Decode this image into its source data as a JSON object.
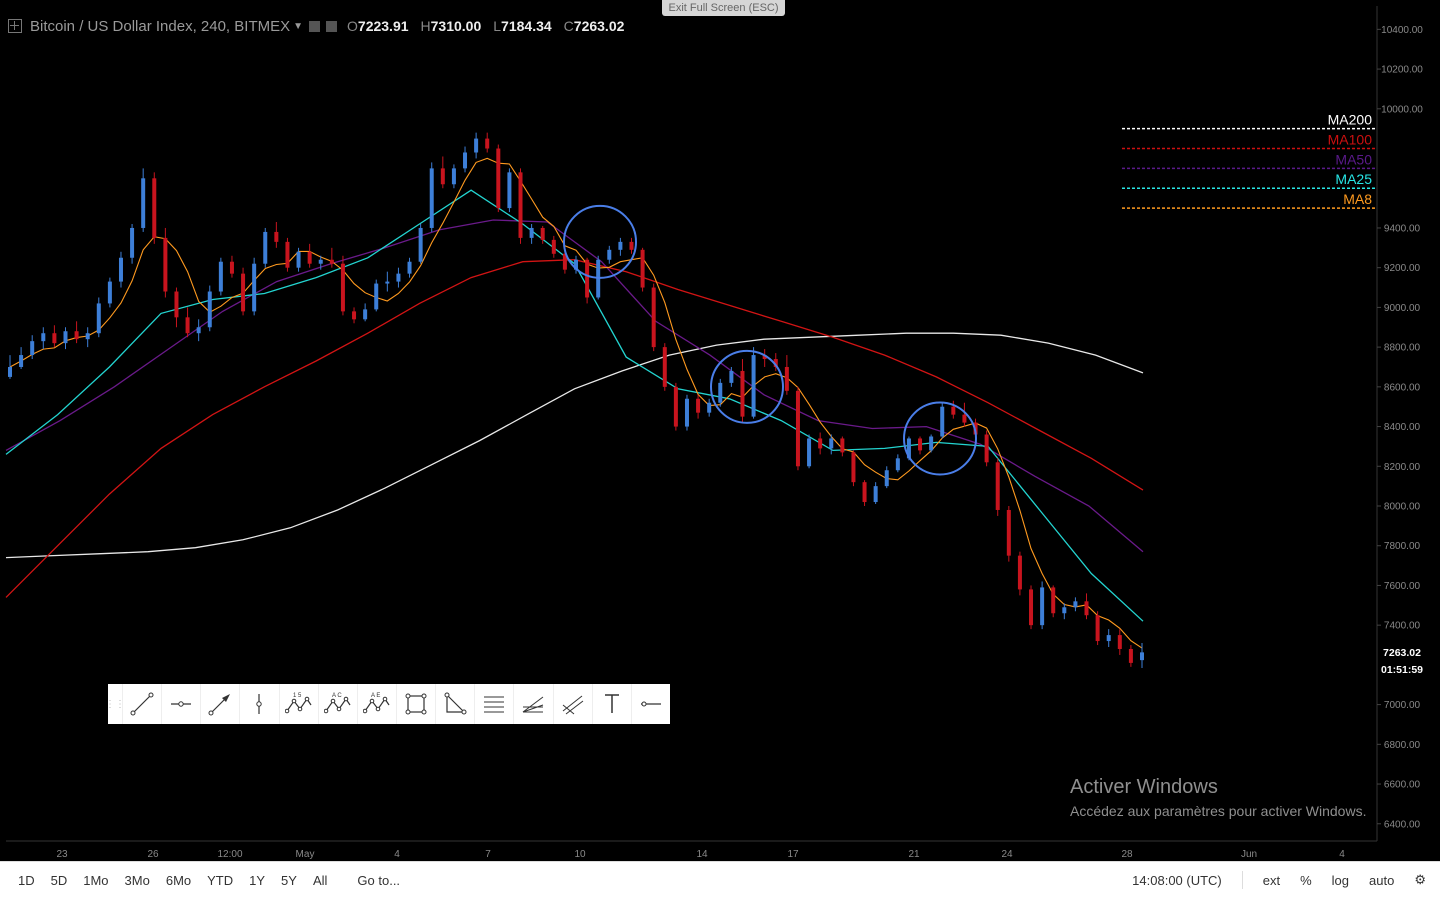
{
  "header": {
    "symbol": "Bitcoin / US Dollar Index, 240, BITMEX",
    "open_key": "O",
    "open": "7223.91",
    "high_key": "H",
    "high": "7310.00",
    "low_key": "L",
    "low": "7184.34",
    "close_key": "C",
    "close": "7263.02"
  },
  "exit_fullscreen": "Exit Full Screen (ESC)",
  "watermark": {
    "line1": "Activer Windows",
    "line2": "Accédez aux paramètres pour activer Windows."
  },
  "bottom_bar": {
    "ranges": [
      "1D",
      "5D",
      "1Mo",
      "3Mo",
      "6Mo",
      "YTD",
      "1Y",
      "5Y",
      "All"
    ],
    "goto": "Go to...",
    "time": "14:08:00 (UTC)",
    "ext": "ext",
    "percent": "%",
    "log": "log",
    "auto": "auto"
  },
  "drawing_tools": [
    "trend-line",
    "horizontal-ray",
    "arrow",
    "vertical-line",
    "abcd-pattern",
    "xabcd-pattern",
    "abcde-pattern",
    "rectangle",
    "triangle",
    "fib-retracement",
    "fib-fan",
    "pitchfork",
    "text",
    "horizontal-line"
  ],
  "chart_data": {
    "type": "candlestick",
    "title": "Bitcoin / US Dollar Index, 240, BITMEX",
    "ylim": [
      6300,
      10500
    ],
    "y_ticks": [
      "10400.00",
      "10200.00",
      "10000.00",
      "9400.00",
      "9200.00",
      "9000.00",
      "8800.00",
      "8600.00",
      "8400.00",
      "8200.00",
      "8000.00",
      "7800.00",
      "7600.00",
      "7400.00",
      "7000.00",
      "6800.00",
      "6600.00",
      "6400.00"
    ],
    "x_ticks": [
      "23",
      "26",
      "12:00",
      "May",
      "4",
      "7",
      "10",
      "14",
      "17",
      "21",
      "24",
      "28",
      "Jun",
      "4"
    ],
    "last_price": "7263.02",
    "countdown": "01:51:59",
    "legend": [
      {
        "name": "MA200",
        "value": "9900.00",
        "color": "#ffffff"
      },
      {
        "name": "MA100",
        "value": "9800.00",
        "color": "#cc1010"
      },
      {
        "name": "MA50",
        "value": "9700.00",
        "color": "#5a1a8a"
      },
      {
        "name": "MA25",
        "value": "9600.00",
        "color": "#27e6e6"
      },
      {
        "name": "MA8",
        "value": "9500.00",
        "color": "#ff9a1f"
      }
    ],
    "colors": {
      "up": "#3d7fd8",
      "down": "#c8141e",
      "circles": "#4a7ee8"
    },
    "candles": [
      [
        8650,
        8760,
        8640,
        8700
      ],
      [
        8700,
        8800,
        8690,
        8760
      ],
      [
        8760,
        8860,
        8740,
        8830
      ],
      [
        8830,
        8900,
        8790,
        8870
      ],
      [
        8870,
        8910,
        8800,
        8820
      ],
      [
        8820,
        8900,
        8790,
        8880
      ],
      [
        8880,
        8930,
        8820,
        8840
      ],
      [
        8840,
        8900,
        8800,
        8870
      ],
      [
        8870,
        9050,
        8850,
        9020
      ],
      [
        9020,
        9150,
        9000,
        9130
      ],
      [
        9130,
        9280,
        9100,
        9250
      ],
      [
        9250,
        9420,
        9220,
        9400
      ],
      [
        9400,
        9700,
        9380,
        9650
      ],
      [
        9650,
        9680,
        9320,
        9350
      ],
      [
        9350,
        9400,
        9050,
        9080
      ],
      [
        9080,
        9100,
        8900,
        8950
      ],
      [
        8950,
        9000,
        8850,
        8870
      ],
      [
        8870,
        8940,
        8830,
        8900
      ],
      [
        8900,
        9110,
        8880,
        9080
      ],
      [
        9080,
        9250,
        9060,
        9230
      ],
      [
        9230,
        9260,
        9150,
        9170
      ],
      [
        9170,
        9200,
        8960,
        8980
      ],
      [
        8980,
        9250,
        8960,
        9220
      ],
      [
        9220,
        9400,
        9200,
        9380
      ],
      [
        9380,
        9430,
        9300,
        9330
      ],
      [
        9330,
        9350,
        9180,
        9200
      ],
      [
        9200,
        9300,
        9180,
        9280
      ],
      [
        9280,
        9320,
        9200,
        9220
      ],
      [
        9220,
        9260,
        9190,
        9240
      ],
      [
        9240,
        9300,
        9200,
        9220
      ],
      [
        9220,
        9260,
        8960,
        8980
      ],
      [
        8980,
        9000,
        8920,
        8940
      ],
      [
        8940,
        9020,
        8930,
        8990
      ],
      [
        8990,
        9140,
        8980,
        9120
      ],
      [
        9120,
        9180,
        9080,
        9130
      ],
      [
        9130,
        9200,
        9100,
        9170
      ],
      [
        9170,
        9250,
        9150,
        9230
      ],
      [
        9230,
        9420,
        9220,
        9400
      ],
      [
        9400,
        9730,
        9380,
        9700
      ],
      [
        9700,
        9760,
        9600,
        9620
      ],
      [
        9620,
        9720,
        9600,
        9700
      ],
      [
        9700,
        9810,
        9680,
        9780
      ],
      [
        9780,
        9880,
        9750,
        9850
      ],
      [
        9850,
        9880,
        9780,
        9800
      ],
      [
        9800,
        9820,
        9480,
        9500
      ],
      [
        9500,
        9700,
        9480,
        9680
      ],
      [
        9680,
        9700,
        9320,
        9350
      ],
      [
        9350,
        9420,
        9320,
        9400
      ],
      [
        9400,
        9410,
        9320,
        9340
      ],
      [
        9340,
        9360,
        9250,
        9270
      ],
      [
        9270,
        9290,
        9170,
        9190
      ],
      [
        9190,
        9260,
        9170,
        9240
      ],
      [
        9240,
        9250,
        9020,
        9050
      ],
      [
        9050,
        9260,
        9040,
        9240
      ],
      [
        9240,
        9310,
        9220,
        9290
      ],
      [
        9290,
        9350,
        9260,
        9330
      ],
      [
        9330,
        9350,
        9270,
        9290
      ],
      [
        9290,
        9300,
        9080,
        9100
      ],
      [
        9100,
        9120,
        8780,
        8800
      ],
      [
        8800,
        8820,
        8580,
        8600
      ],
      [
        8600,
        8620,
        8380,
        8400
      ],
      [
        8400,
        8560,
        8380,
        8540
      ],
      [
        8540,
        8560,
        8440,
        8470
      ],
      [
        8470,
        8540,
        8450,
        8520
      ],
      [
        8520,
        8640,
        8500,
        8620
      ],
      [
        8620,
        8700,
        8600,
        8680
      ],
      [
        8680,
        8740,
        8420,
        8450
      ],
      [
        8450,
        8800,
        8440,
        8760
      ],
      [
        8760,
        8790,
        8700,
        8740
      ],
      [
        8740,
        8770,
        8680,
        8700
      ],
      [
        8700,
        8760,
        8560,
        8580
      ],
      [
        8580,
        8600,
        8180,
        8200
      ],
      [
        8200,
        8360,
        8190,
        8340
      ],
      [
        8340,
        8370,
        8260,
        8290
      ],
      [
        8290,
        8360,
        8260,
        8340
      ],
      [
        8340,
        8350,
        8250,
        8270
      ],
      [
        8270,
        8280,
        8100,
        8120
      ],
      [
        8120,
        8130,
        8000,
        8020
      ],
      [
        8020,
        8120,
        8010,
        8100
      ],
      [
        8100,
        8200,
        8090,
        8180
      ],
      [
        8180,
        8260,
        8170,
        8240
      ],
      [
        8240,
        8350,
        8230,
        8340
      ],
      [
        8340,
        8350,
        8260,
        8280
      ],
      [
        8280,
        8360,
        8270,
        8350
      ],
      [
        8350,
        8520,
        8340,
        8500
      ],
      [
        8500,
        8530,
        8440,
        8460
      ],
      [
        8460,
        8520,
        8400,
        8420
      ],
      [
        8420,
        8440,
        8340,
        8360
      ],
      [
        8360,
        8380,
        8200,
        8220
      ],
      [
        8220,
        8240,
        7950,
        7980
      ],
      [
        7980,
        8000,
        7720,
        7750
      ],
      [
        7750,
        7770,
        7550,
        7580
      ],
      [
        7580,
        7600,
        7380,
        7400
      ],
      [
        7400,
        7620,
        7380,
        7590
      ],
      [
        7590,
        7600,
        7440,
        7460
      ],
      [
        7460,
        7510,
        7430,
        7490
      ],
      [
        7490,
        7540,
        7470,
        7520
      ],
      [
        7520,
        7560,
        7430,
        7450
      ],
      [
        7450,
        7470,
        7300,
        7320
      ],
      [
        7320,
        7380,
        7290,
        7350
      ],
      [
        7350,
        7380,
        7250,
        7280
      ],
      [
        7280,
        7300,
        7190,
        7210
      ],
      [
        7223.91,
        7310,
        7184.34,
        7263.02
      ]
    ],
    "ma_lines": [
      {
        "name": "MA200",
        "color": "#e8e8e8",
        "values": [
          7740,
          7750,
          7760,
          7770,
          7790,
          7830,
          7890,
          7980,
          8090,
          8210,
          8330,
          8460,
          8590,
          8680,
          8760,
          8810,
          8840,
          8850,
          8860,
          8870,
          8870,
          8860,
          8820,
          8760,
          8670
        ]
      },
      {
        "name": "MA100",
        "color": "#d21414",
        "values": [
          7540,
          7800,
          8060,
          8290,
          8460,
          8600,
          8730,
          8870,
          9020,
          9150,
          9230,
          9240,
          9180,
          9090,
          9010,
          8930,
          8850,
          8760,
          8650,
          8520,
          8380,
          8240,
          8080
        ]
      },
      {
        "name": "MA50",
        "color": "#6a1a8a",
        "values": [
          8280,
          8430,
          8600,
          8790,
          8980,
          9130,
          9220,
          9300,
          9390,
          9440,
          9430,
          9230,
          8930,
          8760,
          8560,
          8430,
          8390,
          8400,
          8310,
          8150,
          8000,
          7770
        ]
      },
      {
        "name": "MA25",
        "color": "#23d4d0",
        "values": [
          8260,
          8460,
          8700,
          8970,
          9040,
          9070,
          9150,
          9250,
          9420,
          9590,
          9420,
          9220,
          8750,
          8590,
          8540,
          8430,
          8280,
          8290,
          8320,
          8300,
          7980,
          7660,
          7420
        ]
      }
    ],
    "annotations": [
      {
        "type": "circle",
        "at": "10",
        "value": 9330
      },
      {
        "type": "circle",
        "at": "15",
        "value": 8600
      },
      {
        "type": "circle",
        "at": "21",
        "value": 8340
      }
    ]
  }
}
